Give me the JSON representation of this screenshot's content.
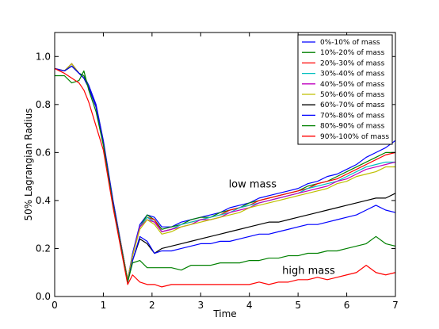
{
  "chart_data": {
    "type": "line",
    "title": "",
    "xlabel": "Time",
    "ylabel": "50% Lagrangian Radius",
    "xlim": [
      0,
      7
    ],
    "ylim": [
      0,
      1.1
    ],
    "xticks": [
      "0",
      "1",
      "2",
      "3",
      "4",
      "5",
      "6",
      "7"
    ],
    "yticks": [
      "0.0",
      "0.2",
      "0.4",
      "0.6",
      "0.8",
      "1.0"
    ],
    "grid": false,
    "legend_position": "top-right",
    "annotations": [
      {
        "text": "low mass",
        "x": 3.9,
        "y": 0.47
      },
      {
        "text": "high mass",
        "x": 5.0,
        "y": 0.11
      }
    ],
    "x": [
      0,
      0.2,
      0.35,
      0.5,
      0.6,
      0.7,
      0.85,
      1.0,
      1.2,
      1.5,
      1.6,
      1.75,
      1.9,
      2.05,
      2.2,
      2.4,
      2.6,
      2.8,
      3.0,
      3.2,
      3.4,
      3.6,
      3.8,
      4.0,
      4.2,
      4.4,
      4.6,
      4.8,
      5.0,
      5.2,
      5.4,
      5.6,
      5.8,
      6.0,
      6.2,
      6.4,
      6.6,
      6.8,
      7.0
    ],
    "series": [
      {
        "name": "0%-10% of mass",
        "color": "#0000ff",
        "values": [
          0.95,
          0.94,
          0.97,
          0.93,
          0.92,
          0.88,
          0.8,
          0.65,
          0.4,
          0.07,
          0.18,
          0.3,
          0.34,
          0.33,
          0.29,
          0.29,
          0.31,
          0.32,
          0.33,
          0.34,
          0.35,
          0.37,
          0.38,
          0.39,
          0.41,
          0.42,
          0.43,
          0.44,
          0.45,
          0.47,
          0.48,
          0.5,
          0.51,
          0.53,
          0.55,
          0.58,
          0.6,
          0.62,
          0.65
        ]
      },
      {
        "name": "10%-20% of mass",
        "color": "#008000",
        "values": [
          0.95,
          0.94,
          0.96,
          0.93,
          0.92,
          0.87,
          0.79,
          0.64,
          0.39,
          0.07,
          0.17,
          0.29,
          0.34,
          0.32,
          0.28,
          0.29,
          0.3,
          0.32,
          0.33,
          0.33,
          0.35,
          0.36,
          0.37,
          0.39,
          0.4,
          0.41,
          0.42,
          0.43,
          0.44,
          0.46,
          0.47,
          0.48,
          0.5,
          0.52,
          0.54,
          0.56,
          0.58,
          0.6,
          0.6
        ]
      },
      {
        "name": "20%-30% of mass",
        "color": "#ff0000",
        "values": [
          0.95,
          0.94,
          0.97,
          0.93,
          0.91,
          0.87,
          0.79,
          0.64,
          0.39,
          0.07,
          0.17,
          0.29,
          0.33,
          0.32,
          0.27,
          0.28,
          0.3,
          0.31,
          0.32,
          0.33,
          0.34,
          0.36,
          0.37,
          0.38,
          0.4,
          0.41,
          0.42,
          0.43,
          0.44,
          0.45,
          0.47,
          0.48,
          0.49,
          0.51,
          0.53,
          0.55,
          0.57,
          0.59,
          0.6
        ]
      },
      {
        "name": "30%-40% of mass",
        "color": "#00bfbf",
        "values": [
          0.95,
          0.94,
          0.97,
          0.93,
          0.91,
          0.87,
          0.79,
          0.64,
          0.39,
          0.07,
          0.17,
          0.29,
          0.33,
          0.31,
          0.27,
          0.28,
          0.3,
          0.31,
          0.32,
          0.33,
          0.34,
          0.35,
          0.37,
          0.38,
          0.39,
          0.4,
          0.41,
          0.42,
          0.43,
          0.45,
          0.46,
          0.47,
          0.48,
          0.5,
          0.52,
          0.54,
          0.55,
          0.56,
          0.56
        ]
      },
      {
        "name": "40%-50% of mass",
        "color": "#bf00bf",
        "values": [
          0.95,
          0.94,
          0.97,
          0.93,
          0.91,
          0.87,
          0.79,
          0.64,
          0.39,
          0.07,
          0.17,
          0.29,
          0.32,
          0.31,
          0.27,
          0.28,
          0.29,
          0.3,
          0.32,
          0.32,
          0.33,
          0.35,
          0.36,
          0.37,
          0.39,
          0.4,
          0.41,
          0.42,
          0.43,
          0.44,
          0.45,
          0.46,
          0.48,
          0.49,
          0.51,
          0.53,
          0.54,
          0.55,
          0.56
        ]
      },
      {
        "name": "50%-60% of mass",
        "color": "#bfbf00",
        "values": [
          0.95,
          0.94,
          0.97,
          0.93,
          0.91,
          0.87,
          0.79,
          0.64,
          0.39,
          0.07,
          0.17,
          0.28,
          0.32,
          0.3,
          0.26,
          0.27,
          0.29,
          0.3,
          0.31,
          0.32,
          0.33,
          0.34,
          0.35,
          0.37,
          0.38,
          0.39,
          0.4,
          0.41,
          0.42,
          0.43,
          0.44,
          0.45,
          0.47,
          0.48,
          0.5,
          0.51,
          0.52,
          0.54,
          0.54
        ]
      },
      {
        "name": "60%-70% of mass",
        "color": "#000000",
        "values": [
          0.95,
          0.94,
          0.96,
          0.93,
          0.91,
          0.87,
          0.79,
          0.64,
          0.39,
          0.06,
          0.15,
          0.24,
          0.22,
          0.18,
          0.2,
          0.21,
          0.22,
          0.23,
          0.24,
          0.25,
          0.26,
          0.27,
          0.28,
          0.29,
          0.3,
          0.31,
          0.31,
          0.32,
          0.33,
          0.34,
          0.35,
          0.36,
          0.37,
          0.38,
          0.39,
          0.4,
          0.41,
          0.41,
          0.43
        ]
      },
      {
        "name": "70%-80% of mass",
        "color": "#0000ff",
        "values": [
          0.95,
          0.94,
          0.96,
          0.93,
          0.91,
          0.87,
          0.79,
          0.64,
          0.39,
          0.06,
          0.15,
          0.25,
          0.23,
          0.18,
          0.19,
          0.19,
          0.2,
          0.21,
          0.22,
          0.22,
          0.23,
          0.23,
          0.24,
          0.25,
          0.26,
          0.26,
          0.27,
          0.28,
          0.29,
          0.3,
          0.3,
          0.31,
          0.32,
          0.33,
          0.34,
          0.36,
          0.38,
          0.36,
          0.35
        ]
      },
      {
        "name": "80%-90% of mass",
        "color": "#008000",
        "values": [
          0.92,
          0.92,
          0.89,
          0.9,
          0.94,
          0.86,
          0.77,
          0.63,
          0.38,
          0.06,
          0.14,
          0.15,
          0.12,
          0.12,
          0.12,
          0.12,
          0.11,
          0.13,
          0.13,
          0.13,
          0.14,
          0.14,
          0.14,
          0.15,
          0.15,
          0.16,
          0.16,
          0.17,
          0.17,
          0.18,
          0.18,
          0.19,
          0.19,
          0.2,
          0.21,
          0.22,
          0.25,
          0.22,
          0.21
        ]
      },
      {
        "name": "90%-100% of mass",
        "color": "#ff0000",
        "values": [
          0.95,
          0.93,
          0.91,
          0.89,
          0.86,
          0.81,
          0.71,
          0.61,
          0.37,
          0.05,
          0.09,
          0.06,
          0.05,
          0.05,
          0.04,
          0.05,
          0.05,
          0.05,
          0.05,
          0.05,
          0.05,
          0.05,
          0.05,
          0.05,
          0.06,
          0.05,
          0.06,
          0.06,
          0.07,
          0.07,
          0.08,
          0.07,
          0.08,
          0.09,
          0.1,
          0.13,
          0.1,
          0.09,
          0.1
        ]
      }
    ]
  }
}
